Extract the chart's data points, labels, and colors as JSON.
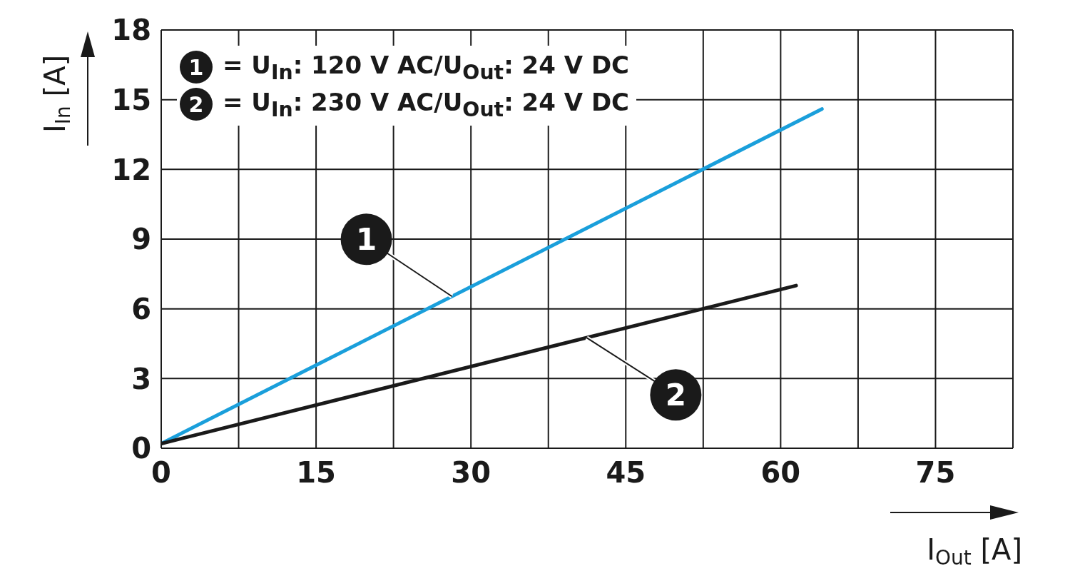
{
  "chart_data": {
    "type": "line",
    "xlabel": "I$_{Out}$ [A]",
    "ylabel": "I$_{In}$ [A]",
    "series": [
      {
        "name": "1",
        "color": "#1a9fdb",
        "x": [
          0,
          64
        ],
        "values": [
          0.2,
          14.6
        ]
      },
      {
        "name": "2",
        "color": "#1a1a1a",
        "x": [
          0,
          61.5
        ],
        "values": [
          0.2,
          7.0
        ]
      }
    ],
    "xlim": [
      0,
      82.5
    ],
    "xticks": [
      0,
      {
        "value": 7.5,
        "label": null
      },
      15,
      {
        "value": 22.5,
        "label": null
      },
      30,
      {
        "value": 37.5,
        "label": null
      },
      45,
      {
        "value": 52.5,
        "label": null
      },
      60,
      {
        "value": 67.5,
        "label": null
      },
      75,
      {
        "value": 82.5,
        "label": null
      }
    ],
    "ylim": [
      0,
      18
    ],
    "yticks": [
      0,
      3,
      6,
      9,
      12,
      15,
      18
    ],
    "grid": true,
    "legend": "top left",
    "annotations": [
      "= U$_{In}$: 120 V AC/U$_{Out}$: 24 V DC",
      "= U$_{In}$: 230 V AC/U$_{Out}$: 24 V DC"
    ]
  }
}
